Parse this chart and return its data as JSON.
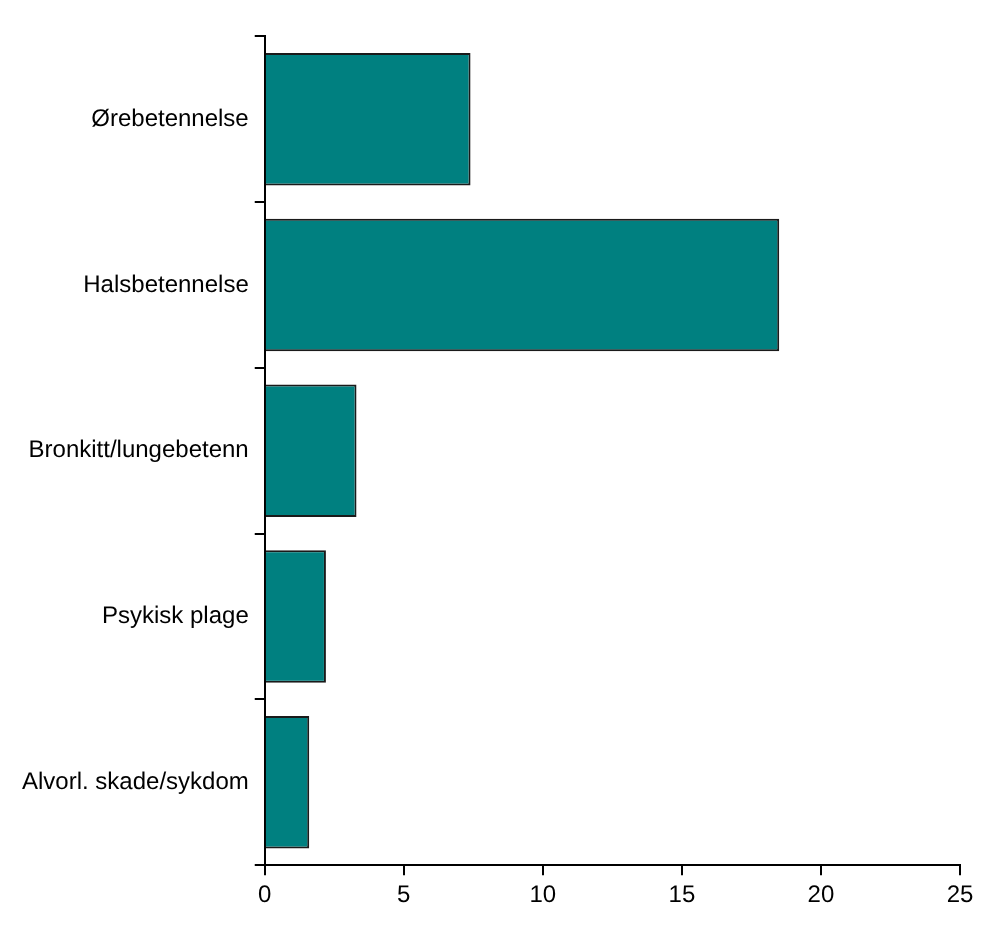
{
  "chart_data": {
    "type": "bar",
    "orientation": "horizontal",
    "categories": [
      "Ørebetennelse",
      "Halsbetennelse",
      "Bronkitt/lungebetenn",
      "Psykisk plage",
      "Alvorl. skade/sykdom"
    ],
    "values": [
      7.4,
      18.5,
      3.3,
      2.2,
      1.6
    ],
    "color": "#008080",
    "xlim": [
      0,
      25
    ],
    "xticks": [
      0,
      5,
      10,
      15,
      20,
      25
    ],
    "grid": false,
    "legend": false
  }
}
